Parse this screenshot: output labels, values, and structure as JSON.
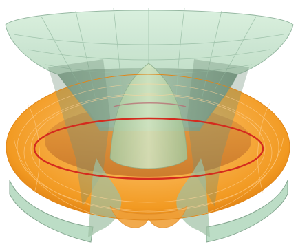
{
  "image": {
    "colors": {
      "background": "#ffffff",
      "hyperboloid_fill": "#bfe3c8",
      "hyperboloid_dark": "#5f7d6a",
      "hyperboloid_grid": "#8fb39c",
      "torus_outer": "#f29a22",
      "torus_light": "#ffcf7a",
      "torus_dark": "#c96a08",
      "torus_grid": "#ffd9a0",
      "circle_line": "#d42b1e"
    }
  }
}
